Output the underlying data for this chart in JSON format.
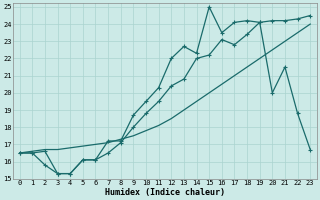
{
  "xlabel": "Humidex (Indice chaleur)",
  "background_color": "#cceae7",
  "grid_color": "#aad4d0",
  "line_color": "#1a6b6b",
  "xlim": [
    -0.5,
    23.5
  ],
  "ylim": [
    15,
    25.2
  ],
  "xticks": [
    0,
    1,
    2,
    3,
    4,
    5,
    6,
    7,
    8,
    9,
    10,
    11,
    12,
    13,
    14,
    15,
    16,
    17,
    18,
    19,
    20,
    21,
    22,
    23
  ],
  "yticks": [
    15,
    16,
    17,
    18,
    19,
    20,
    21,
    22,
    23,
    24,
    25
  ],
  "line_smooth_x": [
    0,
    1,
    2,
    3,
    4,
    5,
    6,
    7,
    8,
    9,
    10,
    11,
    12,
    13,
    14,
    15,
    16,
    17,
    18,
    19,
    20,
    21,
    22,
    23
  ],
  "line_smooth_y": [
    16.5,
    16.6,
    16.7,
    16.7,
    16.8,
    16.9,
    17.0,
    17.1,
    17.3,
    17.5,
    17.8,
    18.1,
    18.5,
    19.0,
    19.5,
    20.0,
    20.5,
    21.0,
    21.5,
    22.0,
    22.5,
    23.0,
    23.5,
    24.0
  ],
  "line_mid_x": [
    0,
    1,
    2,
    3,
    4,
    5,
    6,
    7,
    8,
    9,
    10,
    11,
    12,
    13,
    14,
    15,
    16,
    17,
    18,
    19,
    20,
    21,
    22,
    23
  ],
  "line_mid_y": [
    16.5,
    16.5,
    16.6,
    15.3,
    15.3,
    16.1,
    16.1,
    16.5,
    17.1,
    18.0,
    18.8,
    19.5,
    20.4,
    20.8,
    22.0,
    22.2,
    23.1,
    22.8,
    23.4,
    24.1,
    24.2,
    24.2,
    24.3,
    24.5
  ],
  "line_jagged_x": [
    0,
    1,
    2,
    3,
    4,
    5,
    6,
    7,
    8,
    9,
    10,
    11,
    12,
    13,
    14,
    15,
    16,
    17,
    18,
    19,
    20,
    21,
    22,
    23
  ],
  "line_jagged_y": [
    16.5,
    16.5,
    15.8,
    15.3,
    15.3,
    16.1,
    16.1,
    17.2,
    17.2,
    18.7,
    19.5,
    20.3,
    22.0,
    22.7,
    22.3,
    25.0,
    23.5,
    24.1,
    24.2,
    24.1,
    20.0,
    21.5,
    18.8,
    16.7
  ]
}
